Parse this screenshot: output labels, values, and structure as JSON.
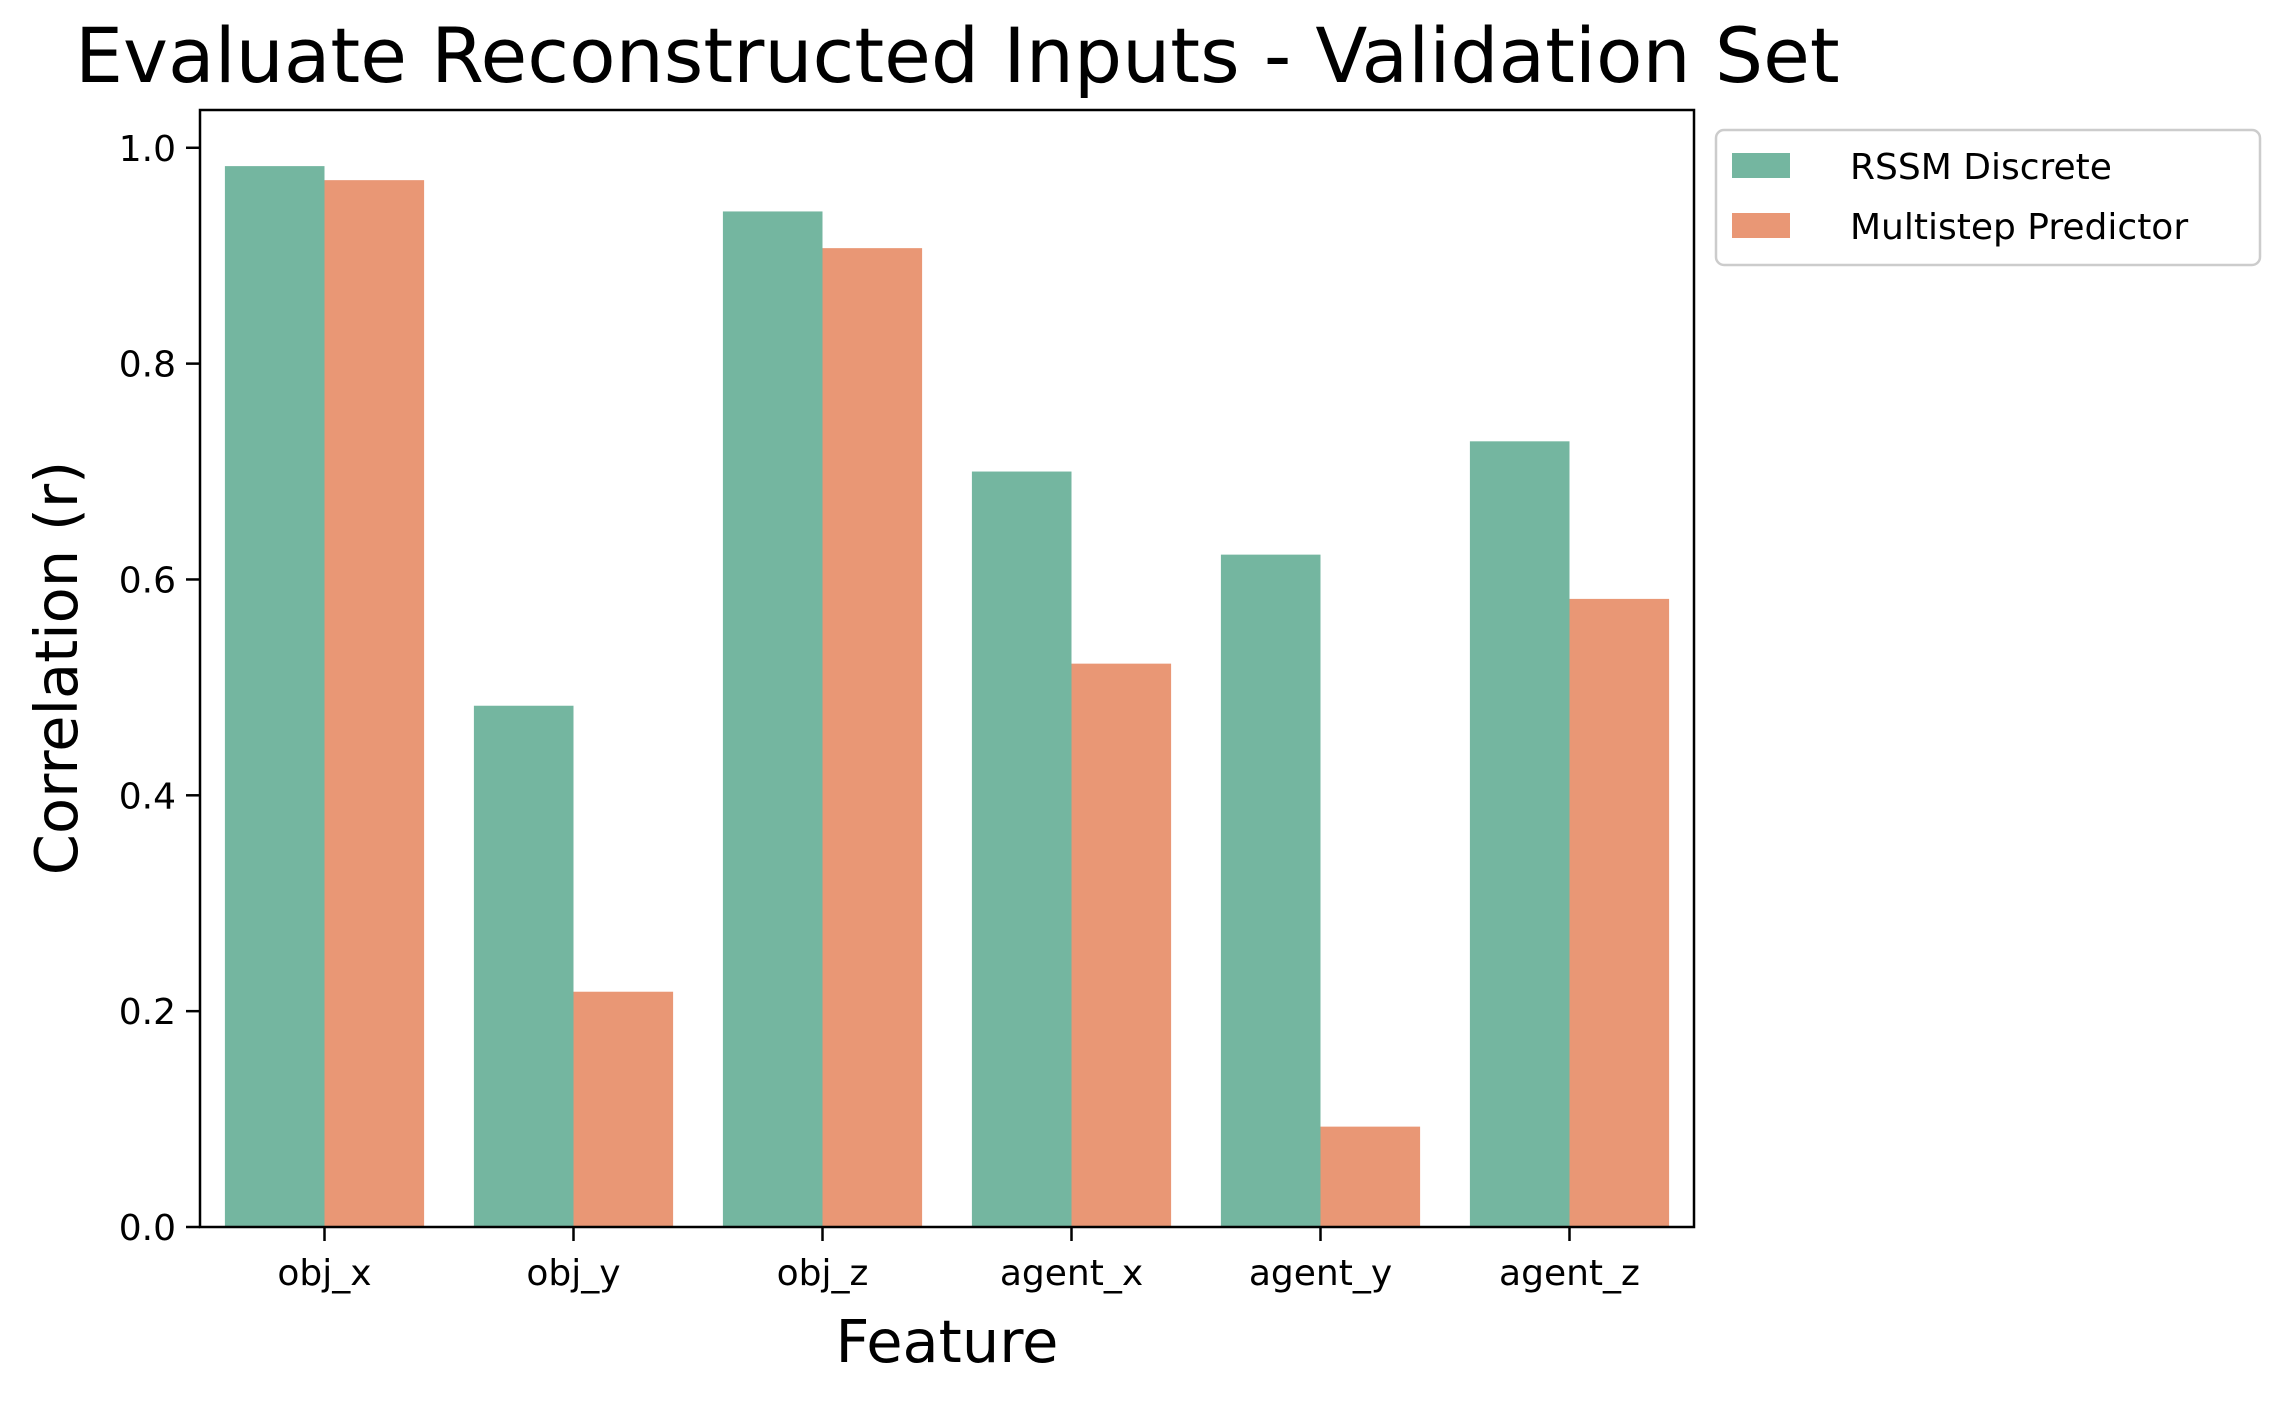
{
  "chart_data": {
    "type": "bar",
    "title": "Evaluate Reconstructed Inputs - Validation Set",
    "xlabel": "Feature",
    "ylabel": "Correlation (r)",
    "categories": [
      "obj_x",
      "obj_y",
      "obj_z",
      "agent_x",
      "agent_y",
      "agent_z"
    ],
    "series": [
      {
        "name": "RSSM Discrete",
        "color": "#74b6a0",
        "values": [
          0.983,
          0.483,
          0.941,
          0.7,
          0.623,
          0.728
        ]
      },
      {
        "name": "Multistep Predictor",
        "color": "#e99775",
        "values": [
          0.97,
          0.218,
          0.907,
          0.522,
          0.093,
          0.582
        ]
      }
    ],
    "ylim": [
      0,
      1.035
    ],
    "yticks": [
      "0.0",
      "0.2",
      "0.4",
      "0.6",
      "0.8",
      "1.0"
    ],
    "grid": false,
    "legend": "outside-top-right"
  }
}
